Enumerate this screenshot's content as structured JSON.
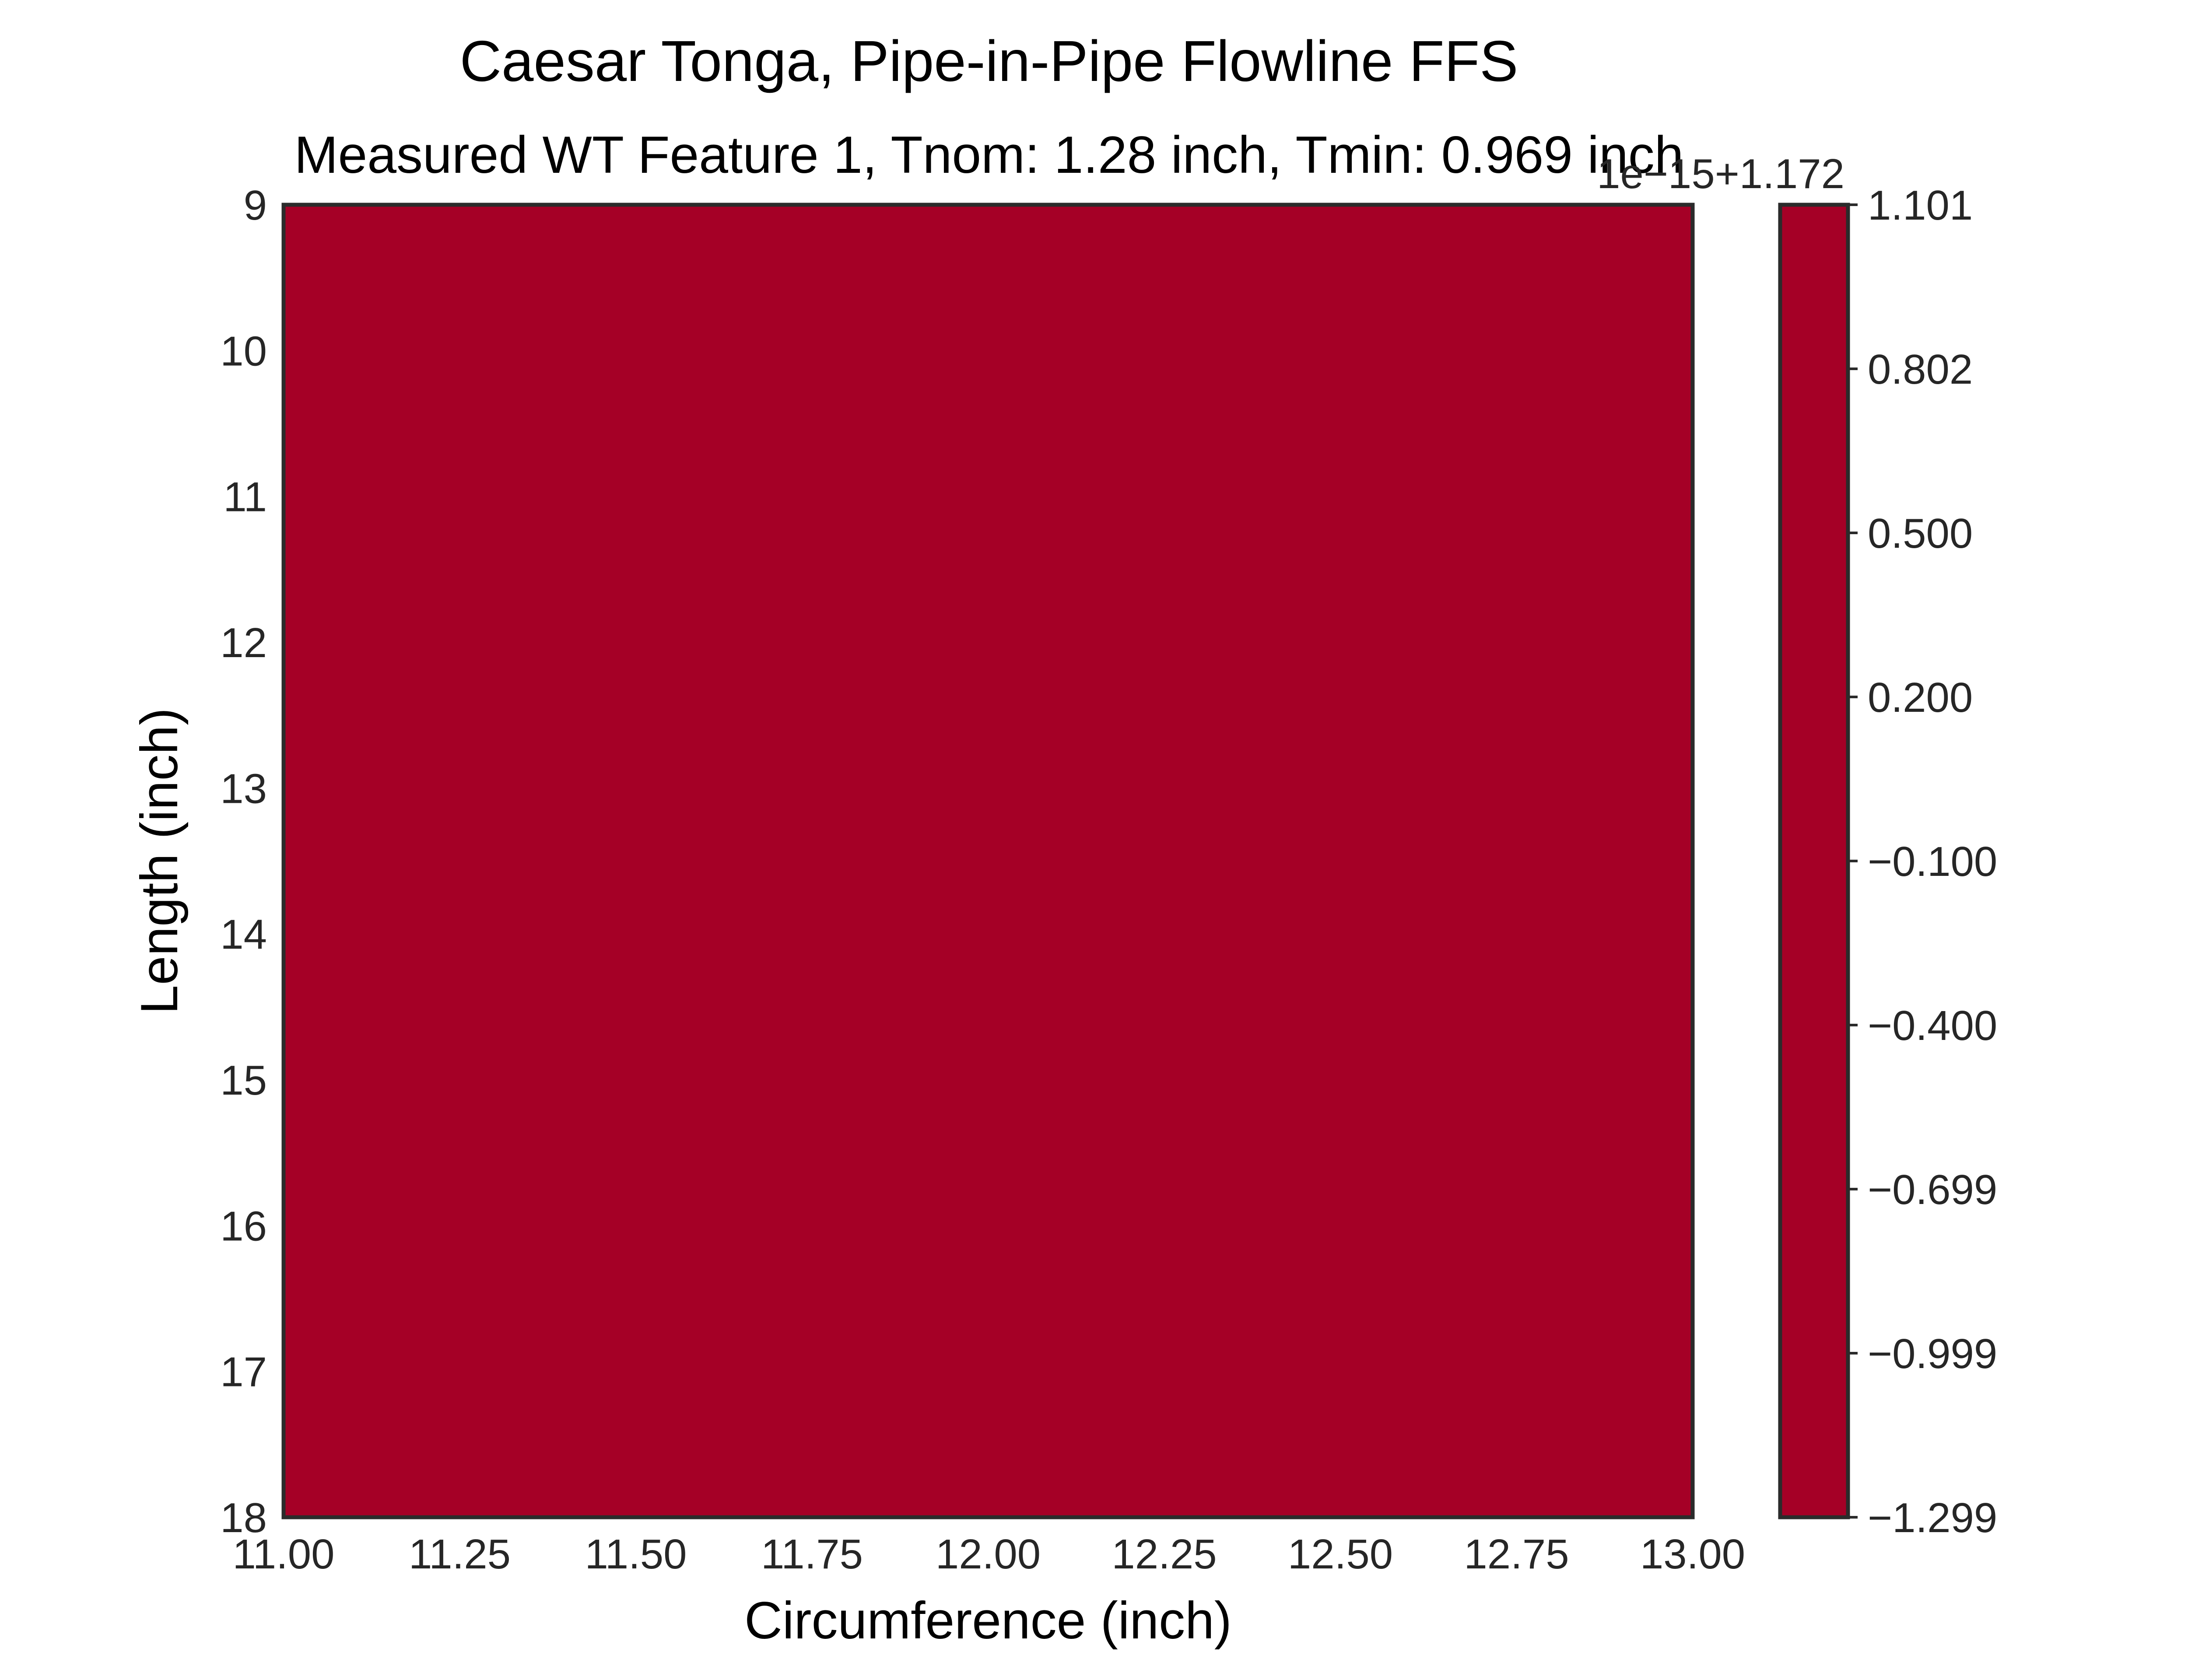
{
  "chart_data": {
    "type": "heatmap",
    "title": "Caesar Tonga, Pipe-in-Pipe Flowline FFS",
    "subtitle": "Measured WT Feature 1, Tnom: 1.28 inch, Tmin: 0.969 inch",
    "xlabel": "Circumference (inch)",
    "ylabel": "Length (inch)",
    "xlim": [
      11.0,
      13.0
    ],
    "ylim": [
      9,
      18
    ],
    "y_inverted": true,
    "x_ticks": [
      "11.00",
      "11.25",
      "11.50",
      "11.75",
      "12.00",
      "12.25",
      "12.50",
      "12.75",
      "13.00"
    ],
    "y_ticks": [
      "9",
      "10",
      "11",
      "12",
      "13",
      "14",
      "15",
      "16",
      "17",
      "18"
    ],
    "value": 1.172,
    "fill_color": "#a50026",
    "grid": false,
    "colorbar": {
      "offset_label": "1e−15+1.172",
      "ticks": [
        "1.101",
        "0.802",
        "0.500",
        "0.200",
        "−0.100",
        "−0.400",
        "−0.699",
        "−0.999",
        "−1.299"
      ],
      "color": "#a50026"
    }
  }
}
